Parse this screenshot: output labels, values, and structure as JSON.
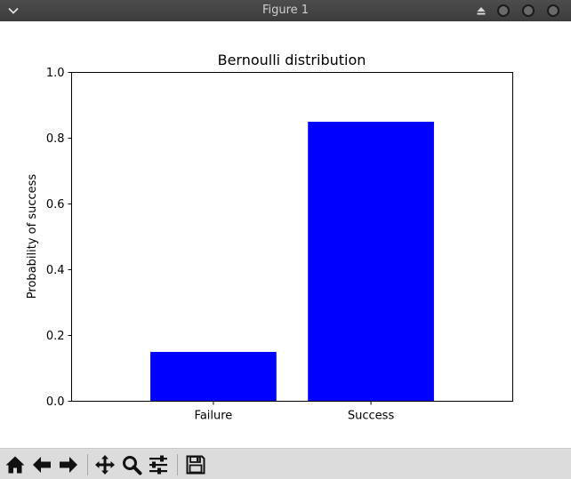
{
  "window": {
    "title": "Figure 1"
  },
  "toolbar": {
    "buttons": [
      {
        "name": "home",
        "icon": "home-icon"
      },
      {
        "name": "back",
        "icon": "arrow-left-icon"
      },
      {
        "name": "forward",
        "icon": "arrow-right-icon"
      },
      {
        "name": "pan",
        "icon": "move-icon"
      },
      {
        "name": "zoom",
        "icon": "magnifier-icon"
      },
      {
        "name": "configure",
        "icon": "sliders-icon"
      },
      {
        "name": "save",
        "icon": "floppy-disk-icon"
      }
    ]
  },
  "chart_data": {
    "type": "bar",
    "title": "Bernoulli distribution",
    "xlabel": "",
    "ylabel": "Probability of success",
    "categories": [
      "Failure",
      "Success"
    ],
    "values": [
      0.15,
      0.85
    ],
    "ylim": [
      0,
      1.0
    ],
    "yticks": [
      "0.0",
      "0.2",
      "0.4",
      "0.6",
      "0.8",
      "1.0"
    ],
    "bar_color": "#0000ff",
    "grid": false
  }
}
